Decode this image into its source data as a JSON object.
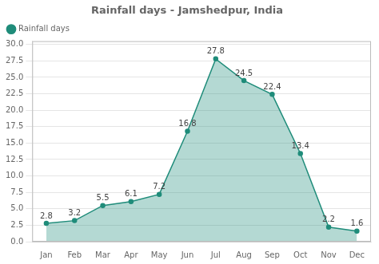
{
  "chart_data": {
    "type": "line",
    "title": "Rainfall days - Jamshedpur, India",
    "categories": [
      "Jan",
      "Feb",
      "Mar",
      "Apr",
      "May",
      "Jun",
      "Jul",
      "Aug",
      "Sep",
      "Oct",
      "Nov",
      "Dec"
    ],
    "series": [
      {
        "name": "Rainfall days",
        "color": "#1f8c7a",
        "values": [
          2.8,
          3.2,
          5.5,
          6.1,
          7.2,
          16.8,
          27.8,
          24.5,
          22.4,
          13.4,
          2.2,
          1.6
        ]
      }
    ],
    "ylim": [
      0,
      30.5
    ],
    "yticks": [
      {
        "value": 0,
        "label": "0.0"
      },
      2.5,
      {
        "value": 5,
        "label": "5.0"
      },
      7.5,
      {
        "value": 10,
        "label": "10.0"
      },
      12.5,
      {
        "value": 15,
        "label": "15.0"
      },
      17.5,
      {
        "value": 20,
        "label": "20.0"
      },
      22.5,
      {
        "value": 25,
        "label": "25.0"
      },
      27.5,
      {
        "value": 30,
        "label": "30.0"
      }
    ],
    "grid": true,
    "legend": "upper left",
    "data_labels": true,
    "marker": "circle"
  }
}
